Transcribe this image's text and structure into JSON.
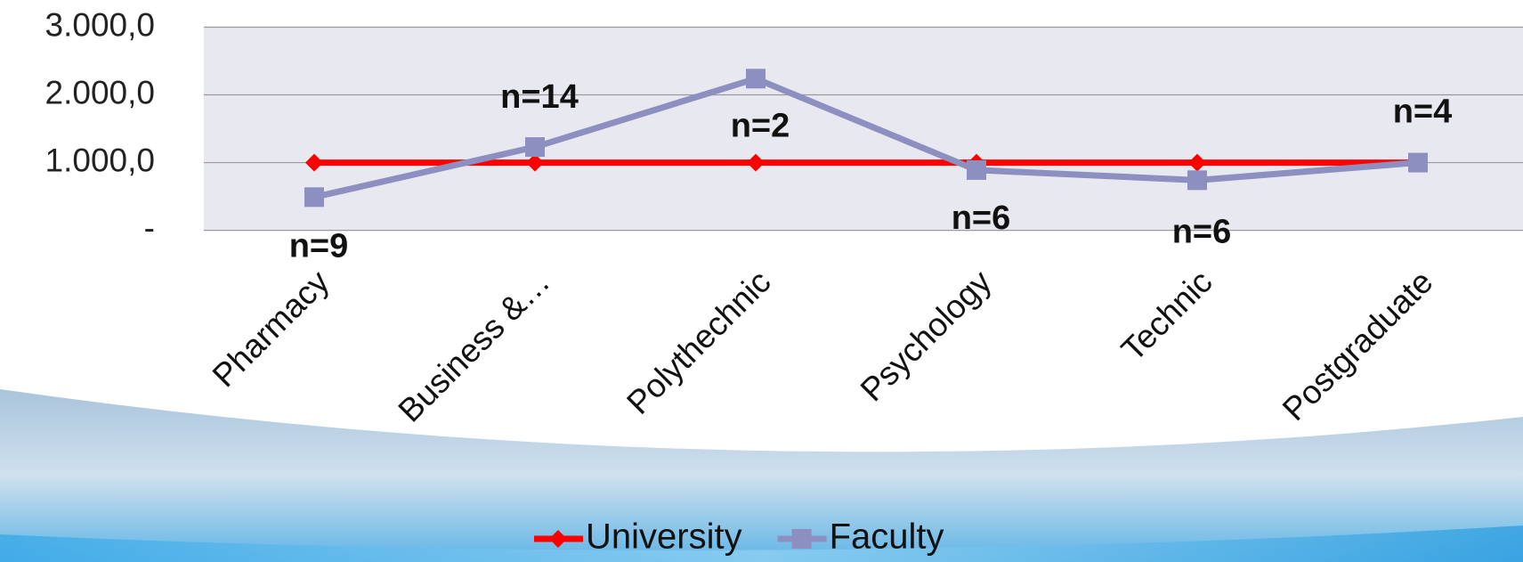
{
  "chart_data": {
    "type": "line",
    "categories": [
      "Pharmacy",
      "Business &…",
      "Polythechnic",
      "Psychology",
      "Technic",
      "Postgraduate"
    ],
    "series": [
      {
        "name": "University",
        "color": "#ff0000",
        "marker": "diamond",
        "values": [
          1000,
          1000,
          1000,
          1000,
          1000,
          1000
        ]
      },
      {
        "name": "Faculty",
        "color": "#8c8fbf",
        "marker": "square",
        "values": [
          490,
          1230,
          2240,
          890,
          740,
          1000
        ]
      }
    ],
    "annotations": [
      "n=9",
      "n=14",
      "n=2",
      "n=6",
      "n=6",
      "n=4"
    ],
    "ylim": [
      0,
      3000
    ],
    "yticks": [
      {
        "value": 0,
        "label": "-"
      },
      {
        "value": 1000,
        "label": "1.000,0"
      },
      {
        "value": 2000,
        "label": "2.000,0"
      },
      {
        "value": 3000,
        "label": "3.000,0"
      }
    ],
    "grid": true,
    "legend": "bottom"
  }
}
